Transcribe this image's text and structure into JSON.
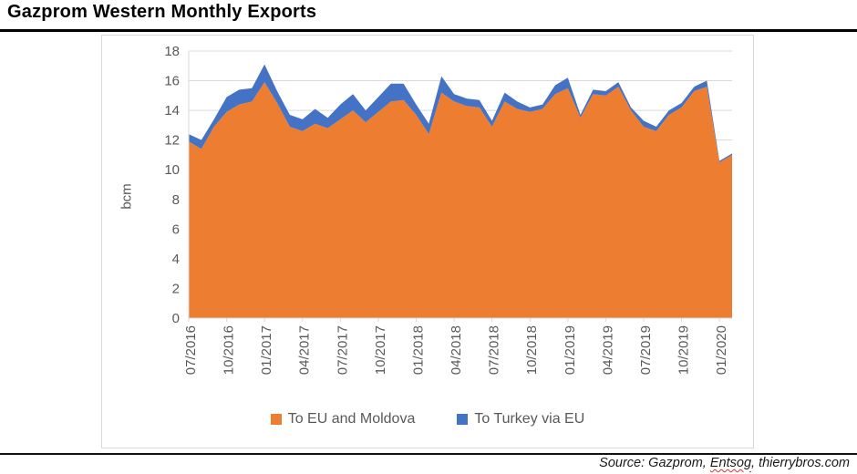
{
  "page": {
    "title": "Gazprom Western Monthly Exports"
  },
  "source": {
    "prefix": "Source: Gazprom, ",
    "word": "Entsog",
    "suffix": ", thierrybros.com",
    "underline_color": "#D93025"
  },
  "chart_data": {
    "type": "area",
    "stacked": true,
    "title": "Gazprom Western Monthly Exports",
    "xlabel": "",
    "ylabel": "bcm",
    "ylim": [
      0,
      18
    ],
    "ytick_step": 2,
    "grid": true,
    "legend_position": "bottom",
    "grid_color": "#D9D9D9",
    "tick_label_color": "#595959",
    "categories": [
      "07/2016",
      "08/2016",
      "09/2016",
      "10/2016",
      "11/2016",
      "12/2016",
      "01/2017",
      "02/2017",
      "03/2017",
      "04/2017",
      "05/2017",
      "06/2017",
      "07/2017",
      "08/2017",
      "09/2017",
      "10/2017",
      "11/2017",
      "12/2017",
      "01/2018",
      "02/2018",
      "03/2018",
      "04/2018",
      "05/2018",
      "06/2018",
      "07/2018",
      "08/2018",
      "09/2018",
      "10/2018",
      "11/2018",
      "12/2018",
      "01/2019",
      "02/2019",
      "03/2019",
      "04/2019",
      "05/2019",
      "06/2019",
      "07/2019",
      "08/2019",
      "09/2019",
      "10/2019",
      "11/2019",
      "12/2019",
      "01/2020",
      "02/2020"
    ],
    "x_tick_labels": [
      "07/2016",
      "10/2016",
      "01/2017",
      "04/2017",
      "07/2017",
      "10/2017",
      "01/2018",
      "04/2018",
      "07/2018",
      "10/2018",
      "01/2019",
      "04/2019",
      "07/2019",
      "10/2019",
      "01/2020"
    ],
    "x_tick_every": 3,
    "series": [
      {
        "name": "To EU and Moldova",
        "color": "#ED7D31",
        "values": [
          11.9,
          11.4,
          12.9,
          13.9,
          14.4,
          14.6,
          15.9,
          14.5,
          12.9,
          12.6,
          13.1,
          12.8,
          13.4,
          14.0,
          13.2,
          13.9,
          14.6,
          14.7,
          13.7,
          12.4,
          15.2,
          14.6,
          14.3,
          14.2,
          12.9,
          14.6,
          14.1,
          13.9,
          14.1,
          15.1,
          15.5,
          13.5,
          15.1,
          15.0,
          15.6,
          14.0,
          12.9,
          12.6,
          13.7,
          14.2,
          15.3,
          15.6,
          10.5,
          11.0
        ]
      },
      {
        "name": "To Turkey via EU",
        "color": "#4472C4",
        "values": [
          0.5,
          0.6,
          0.5,
          1.0,
          1.0,
          0.9,
          1.2,
          0.8,
          0.8,
          0.8,
          1.0,
          0.7,
          1.0,
          1.1,
          0.8,
          1.0,
          1.2,
          1.1,
          0.7,
          0.7,
          1.1,
          0.5,
          0.5,
          0.5,
          0.4,
          0.6,
          0.5,
          0.3,
          0.3,
          0.6,
          0.7,
          0.2,
          0.3,
          0.3,
          0.3,
          0.2,
          0.4,
          0.3,
          0.3,
          0.3,
          0.3,
          0.4,
          0.1,
          0.1
        ]
      }
    ]
  }
}
